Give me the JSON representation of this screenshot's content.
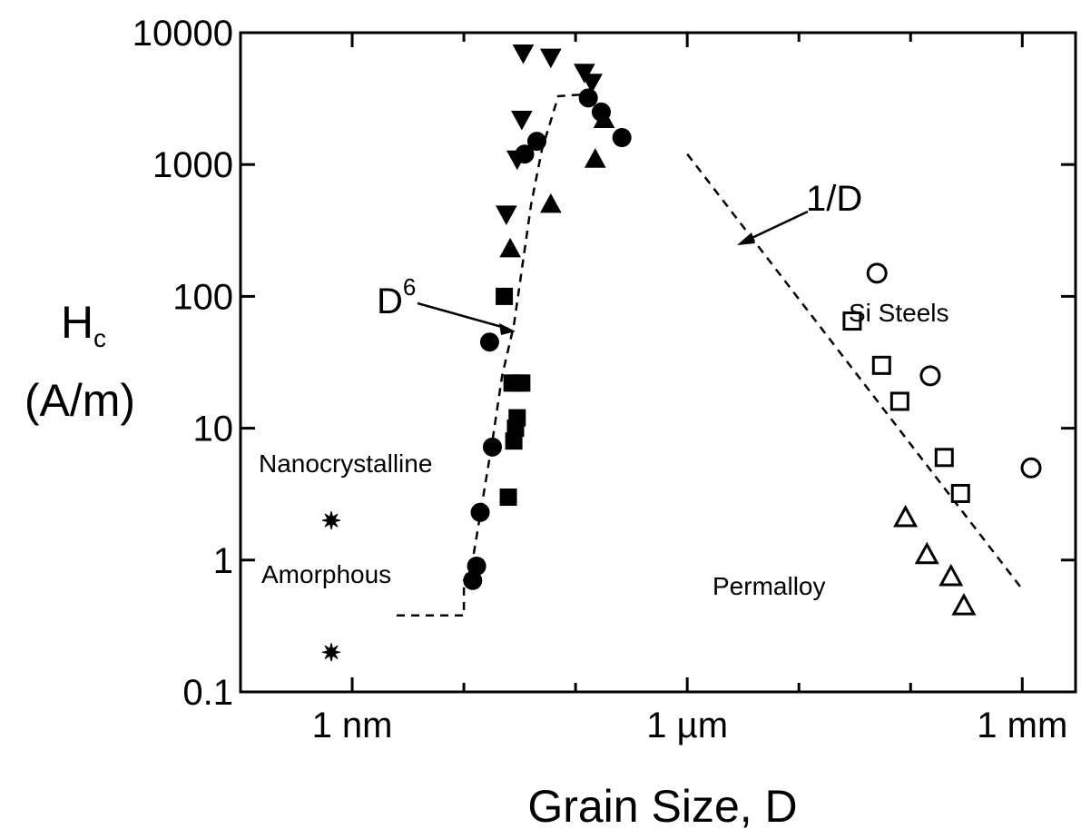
{
  "chart_data": {
    "type": "scatter",
    "title": "",
    "xlabel": "Grain Size, D",
    "ylabel_symbol": "H",
    "ylabel_subscript": "c",
    "ylabel_unit": "(A/m)",
    "x_unit": "nm",
    "x_scale": "log",
    "y_scale": "log",
    "xlim": [
      0.1,
      3000000
    ],
    "ylim": [
      0.1,
      10000
    ],
    "x_ticks": [
      {
        "value": 1,
        "label": "1 nm"
      },
      {
        "value": 1000,
        "label": "1 µm"
      },
      {
        "value": 1000000,
        "label": "1 mm"
      }
    ],
    "y_ticks": [
      {
        "value": 0.1,
        "label": "0.1"
      },
      {
        "value": 1,
        "label": "1"
      },
      {
        "value": 10,
        "label": "10"
      },
      {
        "value": 100,
        "label": "100"
      },
      {
        "value": 1000,
        "label": "1000"
      },
      {
        "value": 10000,
        "label": "10000"
      }
    ],
    "series": [
      {
        "marker": "star",
        "filled": true,
        "points": [
          [
            0.65,
            2.0
          ],
          [
            0.65,
            0.2
          ]
        ]
      },
      {
        "marker": "circle",
        "filled": true,
        "points": [
          [
            12,
            0.7
          ],
          [
            13,
            0.9
          ],
          [
            14,
            2.3
          ],
          [
            18,
            7.2
          ],
          [
            17,
            45
          ],
          [
            35,
            1200
          ],
          [
            45,
            1500
          ],
          [
            130,
            3200
          ],
          [
            170,
            2500
          ],
          [
            260,
            1600
          ]
        ]
      },
      {
        "marker": "square",
        "filled": true,
        "points": [
          [
            25,
            3.0
          ],
          [
            28,
            8
          ],
          [
            29,
            10
          ],
          [
            30,
            12
          ],
          [
            27,
            22
          ],
          [
            30,
            22
          ],
          [
            33,
            22
          ],
          [
            23,
            100
          ]
        ]
      },
      {
        "marker": "triangle-up",
        "filled": true,
        "points": [
          [
            26,
            230
          ],
          [
            60,
            500
          ],
          [
            150,
            1100
          ],
          [
            180,
            2200
          ]
        ]
      },
      {
        "marker": "triangle-down",
        "filled": true,
        "points": [
          [
            24,
            420
          ],
          [
            30,
            1100
          ],
          [
            33,
            2200
          ],
          [
            34,
            7000
          ],
          [
            60,
            6500
          ],
          [
            120,
            5000
          ],
          [
            140,
            4200
          ]
        ]
      },
      {
        "marker": "square",
        "filled": false,
        "points": [
          [
            30000,
            65
          ],
          [
            55000,
            30
          ],
          [
            80000,
            16
          ],
          [
            200000,
            6
          ],
          [
            280000,
            3.2
          ]
        ]
      },
      {
        "marker": "circle",
        "filled": false,
        "points": [
          [
            50000,
            150
          ],
          [
            150000,
            25
          ],
          [
            1200000,
            5
          ]
        ]
      },
      {
        "marker": "triangle-up",
        "filled": false,
        "points": [
          [
            90000,
            2.1
          ],
          [
            140000,
            1.1
          ],
          [
            230000,
            0.75
          ],
          [
            300000,
            0.45
          ]
        ]
      }
    ],
    "fit_lines": [
      {
        "name": "1/D",
        "style": "dashed",
        "points": [
          [
            1000,
            1200
          ],
          [
            1000000,
            0.6
          ]
        ]
      },
      {
        "name": "D6",
        "style": "dashed",
        "points": [
          [
            2.5,
            0.38
          ],
          [
            10,
            0.38
          ],
          [
            10,
            0.7
          ],
          [
            12,
            1.0
          ],
          [
            18,
            8
          ],
          [
            22,
            25
          ],
          [
            28,
            60
          ],
          [
            40,
            500
          ],
          [
            50,
            1300
          ],
          [
            70,
            3300
          ],
          [
            120,
            3400
          ]
        ]
      }
    ],
    "annotations": {
      "nanocrystalline": "Nanocrystalline",
      "amorphous": "Amorphous",
      "si_steels": "Si Steels",
      "permalloy": "Permalloy",
      "one_over_d": "1/D",
      "d6_base": "D",
      "d6_exp": "6"
    }
  }
}
